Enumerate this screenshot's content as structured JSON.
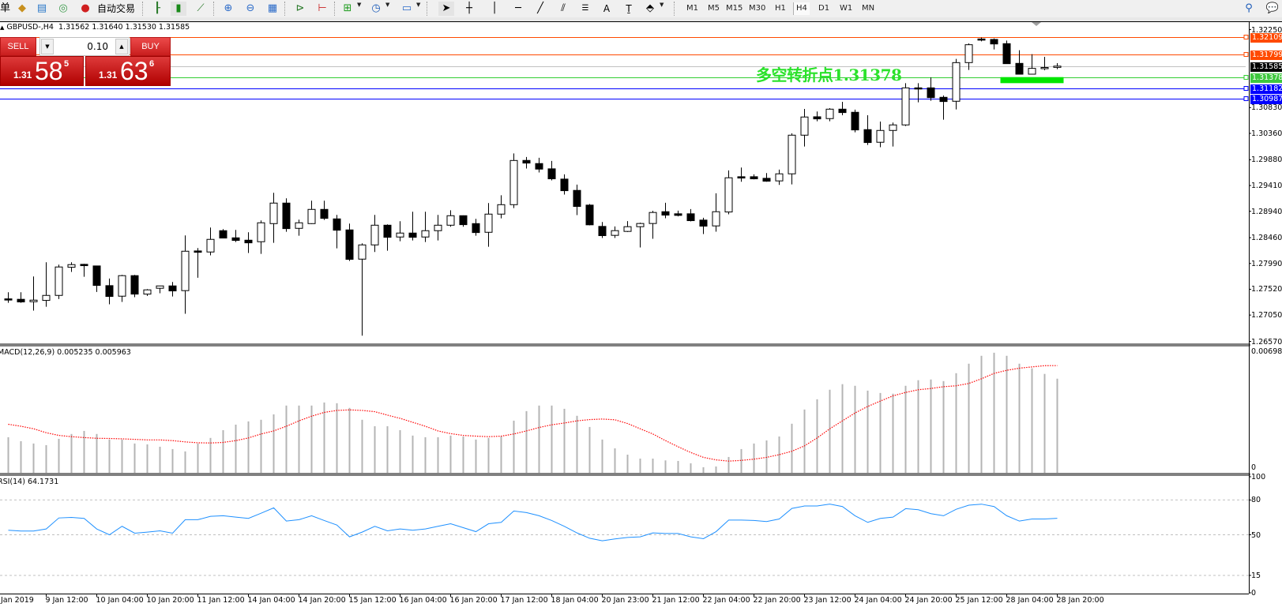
{
  "toolbar": {
    "truncated_label": "单",
    "auto_trade_label": "自动交易",
    "timeframes": [
      "M1",
      "M5",
      "M15",
      "M30",
      "H1",
      "H4",
      "D1",
      "W1",
      "MN"
    ],
    "active_timeframe": "H4",
    "icons": [
      "new-order-icon",
      "gold-icon",
      "history-center-icon",
      "signal-icon",
      "autotrade-icon",
      "bar-chart-icon",
      "candlestick-icon",
      "line-chart-icon",
      "zoom-in-icon",
      "zoom-out-icon",
      "tile-windows-icon",
      "auto-scroll-icon",
      "chart-shift-icon",
      "indicators-icon",
      "periods-clock-icon",
      "templates-icon",
      "cursor-icon",
      "crosshair-icon",
      "vertical-line-icon",
      "horizontal-line-icon",
      "trendline-icon",
      "equidistant-channel-icon",
      "fibonacci-icon",
      "text-icon",
      "text-label-icon",
      "shapes-icon",
      "search-icon",
      "chat-icon"
    ]
  },
  "chart": {
    "symbol": "GBPUSD-,H4",
    "ohlc_text": "1.31562 1.31640 1.31530 1.31585",
    "annotation": {
      "text": "多空转折点1.31378",
      "color": "#2be22b"
    },
    "levels": [
      {
        "price": "1.32109",
        "color": "#ff4a00",
        "label_bg": "#ff4a00",
        "marker": true
      },
      {
        "price": "1.31799",
        "color": "#ff4a00",
        "label_bg": "#ff4a00",
        "marker": true
      },
      {
        "price": "1.31585",
        "color": "#c0c0c0",
        "label_bg": "#000000",
        "marker": false
      },
      {
        "price": "1.31378",
        "color": "#32cd32",
        "label_bg": "#3ec83e",
        "marker": true
      },
      {
        "price": "1.31182",
        "color": "#0000ff",
        "label_bg": "#0000ff",
        "marker": true
      },
      {
        "price": "1.30987",
        "color": "#0000ff",
        "label_bg": "#0000ff",
        "marker": true
      }
    ],
    "zone": {
      "from_candle": 78.5,
      "to_candle": 83.5,
      "price_top": 1.31385,
      "price_bottom": 1.31275,
      "color": "#00e600"
    }
  },
  "trade_panel": {
    "sell_label": "SELL",
    "buy_label": "BUY",
    "lot": "0.10",
    "sell_price": {
      "prefix": "1.31",
      "big": "58",
      "sup": "5"
    },
    "buy_price": {
      "prefix": "1.31",
      "big": "63",
      "sup": "6"
    }
  },
  "chart_data": [
    {
      "type": "candlestick",
      "ylim": [
        1.2652,
        1.32387
      ],
      "price_ticks": [
        "1.32250",
        "1.30830",
        "1.30360",
        "1.29880",
        "1.29410",
        "1.28940",
        "1.28460",
        "1.27990",
        "1.27520",
        "1.27050",
        "1.26570"
      ],
      "time_labels": [
        "Jan 2019",
        "9 Jan 12:00",
        "10 Jan 04:00",
        "10 Jan 20:00",
        "11 Jan 12:00",
        "14 Jan 04:00",
        "14 Jan 20:00",
        "15 Jan 12:00",
        "16 Jan 04:00",
        "16 Jan 20:00",
        "17 Jan 12:00",
        "18 Jan 04:00",
        "20 Jan 23:00",
        "21 Jan 12:00",
        "22 Jan 04:00",
        "22 Jan 20:00",
        "23 Jan 12:00",
        "24 Jan 04:00",
        "24 Jan 20:00",
        "25 Jan 12:00",
        "28 Jan 04:00",
        "28 Jan 20:00"
      ],
      "ohlc_order": [
        "open",
        "high",
        "low",
        "close"
      ],
      "ohlc": [
        [
          1.27345,
          1.27466,
          1.27274,
          1.27338
        ],
        [
          1.27337,
          1.27466,
          1.27274,
          1.27289
        ],
        [
          1.27293,
          1.27753,
          1.27131,
          1.27322
        ],
        [
          1.27317,
          1.28012,
          1.27202,
          1.27408
        ],
        [
          1.27408,
          1.27969,
          1.27341,
          1.27926
        ],
        [
          1.27921,
          1.28012,
          1.27835,
          1.27969
        ],
        [
          1.27974,
          1.27983,
          1.27748,
          1.2795
        ],
        [
          1.27945,
          1.2795,
          1.27471,
          1.2759
        ],
        [
          1.27586,
          1.27715,
          1.27246,
          1.27389
        ],
        [
          1.27394,
          1.27782,
          1.27289,
          1.27768
        ],
        [
          1.27768,
          1.27782,
          1.27375,
          1.27432
        ],
        [
          1.27432,
          1.27523,
          1.27399,
          1.27509
        ],
        [
          1.27538,
          1.27585,
          1.27447,
          1.27581
        ],
        [
          1.27581,
          1.27653,
          1.27389,
          1.2749
        ],
        [
          1.27495,
          1.28501,
          1.27073,
          1.28213
        ],
        [
          1.28218,
          1.28271,
          1.27729,
          1.28194
        ],
        [
          1.28199,
          1.28644,
          1.28137,
          1.28429
        ],
        [
          1.28587,
          1.28616,
          1.28448,
          1.28453
        ],
        [
          1.28457,
          1.28601,
          1.28381,
          1.2841
        ],
        [
          1.28414,
          1.28558,
          1.2818,
          1.28366
        ],
        [
          1.28386,
          1.28774,
          1.28165,
          1.28731
        ],
        [
          1.28716,
          1.29277,
          1.28366,
          1.2909
        ],
        [
          1.2909,
          1.29176,
          1.28568,
          1.28625
        ],
        [
          1.2863,
          1.28788,
          1.28496,
          1.28731
        ],
        [
          1.28716,
          1.29133,
          1.2871,
          1.28975
        ],
        [
          1.28975,
          1.29133,
          1.28783,
          1.28812
        ],
        [
          1.28802,
          1.28874,
          1.28266,
          1.28596
        ],
        [
          1.28601,
          1.28716,
          1.28036,
          1.28065
        ],
        [
          1.28069,
          1.28357,
          1.26675,
          1.28328
        ],
        [
          1.28328,
          1.28874,
          1.28199,
          1.28687
        ],
        [
          1.28687,
          1.28702,
          1.28223,
          1.28467
        ],
        [
          1.28472,
          1.28759,
          1.28395,
          1.28544
        ],
        [
          1.28544,
          1.28932,
          1.2841,
          1.28467
        ],
        [
          1.28472,
          1.28932,
          1.28381,
          1.28587
        ],
        [
          1.28587,
          1.28874,
          1.2841,
          1.28687
        ],
        [
          1.28687,
          1.2896,
          1.28659,
          1.2886
        ],
        [
          1.2886,
          1.28865,
          1.28659,
          1.28697
        ],
        [
          1.28716,
          1.28802,
          1.28496,
          1.28553
        ],
        [
          1.28558,
          1.2909,
          1.28295,
          1.28889
        ],
        [
          1.28889,
          1.29233,
          1.28812,
          1.29061
        ],
        [
          1.29061,
          1.29995,
          1.28999,
          1.29866
        ],
        [
          1.29867,
          1.29929,
          1.29719,
          1.29819
        ],
        [
          1.2981,
          1.29915,
          1.29647,
          1.29709
        ],
        [
          1.29714,
          1.29858,
          1.29503,
          1.29532
        ],
        [
          1.29527,
          1.29613,
          1.29245,
          1.29316
        ],
        [
          1.29321,
          1.29427,
          1.28871,
          1.29029
        ],
        [
          1.29053,
          1.29072,
          1.28684,
          1.28694
        ],
        [
          1.28665,
          1.28746,
          1.28454,
          1.28497
        ],
        [
          1.28502,
          1.28665,
          1.28454,
          1.28588
        ],
        [
          1.28574,
          1.28761,
          1.28564,
          1.2866
        ],
        [
          1.2866,
          1.28732,
          1.28282,
          1.28718
        ],
        [
          1.28718,
          1.28948,
          1.2844,
          1.28919
        ],
        [
          1.28933,
          1.29096,
          1.28813,
          1.28871
        ],
        [
          1.28895,
          1.28952,
          1.28847,
          1.28866
        ],
        [
          1.28895,
          1.28981,
          1.28756,
          1.2877
        ],
        [
          1.2878,
          1.28823,
          1.28526,
          1.2867
        ],
        [
          1.28674,
          1.29268,
          1.28569,
          1.28933
        ],
        [
          1.28928,
          1.29685,
          1.28885,
          1.29551
        ],
        [
          1.2957,
          1.29738,
          1.29479,
          1.29546
        ],
        [
          1.2957,
          1.29613,
          1.29522,
          1.29532
        ],
        [
          1.29541,
          1.29637,
          1.29479,
          1.29489
        ],
        [
          1.29494,
          1.297,
          1.29422,
          1.29623
        ],
        [
          1.29623,
          1.30361,
          1.29431,
          1.30327
        ],
        [
          1.30327,
          1.30806,
          1.30121,
          1.30658
        ],
        [
          1.30662,
          1.30758,
          1.30581,
          1.30624
        ],
        [
          1.30629,
          1.3082,
          1.30581,
          1.30801
        ],
        [
          1.30801,
          1.30935,
          1.30691,
          1.30739
        ],
        [
          1.30744,
          1.30792,
          1.3038,
          1.30423
        ],
        [
          1.30428,
          1.30691,
          1.3015,
          1.30193
        ],
        [
          1.30198,
          1.30576,
          1.30107,
          1.30413
        ],
        [
          1.30413,
          1.30557,
          1.30121,
          1.30514
        ],
        [
          1.30514,
          1.31275,
          1.30495,
          1.31189
        ],
        [
          1.31189,
          1.31275,
          1.30926,
          1.3117
        ],
        [
          1.31189,
          1.31381,
          1.30955,
          1.31012
        ],
        [
          1.31017,
          1.3105,
          1.3061,
          1.3094
        ],
        [
          1.30945,
          1.31716,
          1.30796,
          1.31649
        ],
        [
          1.31649,
          1.31999,
          1.31515,
          1.31975
        ],
        [
          1.3208,
          1.32104,
          1.32037,
          1.32061
        ],
        [
          1.32071,
          1.3209,
          1.31889,
          1.31989
        ],
        [
          1.31994,
          1.32051,
          1.31625,
          1.3163
        ],
        [
          1.31635,
          1.31874,
          1.3143,
          1.31438
        ],
        [
          1.31438,
          1.31802,
          1.3143,
          1.31544
        ],
        [
          1.31545,
          1.31754,
          1.3151,
          1.3156
        ],
        [
          1.31562,
          1.3164,
          1.3153,
          1.31585
        ]
      ]
    },
    {
      "type": "bar",
      "title": "MACD(12,26,9) 0.005235 0.005963",
      "ylim": [
        0,
        0.00698
      ],
      "tick_labels": [
        "0.00698",
        "0"
      ],
      "series": [
        {
          "kind": "histogram",
          "color": "#b4b4b4",
          "values": [
            0.00198,
            0.00176,
            0.00163,
            0.00154,
            0.00189,
            0.00216,
            0.00233,
            0.00216,
            0.00185,
            0.00185,
            0.00163,
            0.00158,
            0.00145,
            0.00132,
            0.00119,
            0.00163,
            0.00194,
            0.00237,
            0.00268,
            0.00286,
            0.00295,
            0.00325,
            0.00374,
            0.00374,
            0.00374,
            0.00391,
            0.00387,
            0.00361,
            0.00295,
            0.00259,
            0.00259,
            0.00237,
            0.00207,
            0.00198,
            0.00198,
            0.00207,
            0.00202,
            0.00185,
            0.00194,
            0.00202,
            0.0029,
            0.00343,
            0.00374,
            0.00374,
            0.00356,
            0.00317,
            0.00255,
            0.00185,
            0.00136,
            0.00101,
            0.00079,
            0.00079,
            0.00069,
            0.00066,
            0.00053,
            0.00031,
            0.00035,
            0.00088,
            0.00132,
            0.00163,
            0.0018,
            0.00202,
            0.00273,
            0.00352,
            0.00409,
            0.00462,
            0.00493,
            0.00484,
            0.00457,
            0.00444,
            0.0044,
            0.00484,
            0.00515,
            0.00519,
            0.0051,
            0.00554,
            0.00607,
            0.00651,
            0.00668,
            0.00651,
            0.00607,
            0.00581,
            0.0055,
            0.005235
          ]
        },
        {
          "kind": "signal",
          "color": "#ff0000",
          "values": [
            0.0027,
            0.00259,
            0.00245,
            0.00223,
            0.00208,
            0.00201,
            0.00196,
            0.00192,
            0.00191,
            0.00189,
            0.00186,
            0.00183,
            0.00183,
            0.00179,
            0.00172,
            0.00167,
            0.00166,
            0.00169,
            0.00179,
            0.00194,
            0.00216,
            0.00233,
            0.00259,
            0.00289,
            0.00315,
            0.00336,
            0.00347,
            0.0035,
            0.00347,
            0.0034,
            0.00321,
            0.00303,
            0.00281,
            0.00259,
            0.00233,
            0.00218,
            0.00208,
            0.00204,
            0.00201,
            0.00204,
            0.00216,
            0.00233,
            0.00252,
            0.00267,
            0.00277,
            0.00289,
            0.00296,
            0.00299,
            0.00295,
            0.00274,
            0.00245,
            0.00216,
            0.00179,
            0.00145,
            0.00113,
            0.00086,
            0.00072,
            0.00065,
            0.00069,
            0.00076,
            0.00086,
            0.00101,
            0.0012,
            0.0015,
            0.00194,
            0.00245,
            0.00289,
            0.00333,
            0.00369,
            0.00399,
            0.00428,
            0.00447,
            0.00462,
            0.00469,
            0.00479,
            0.00484,
            0.00497,
            0.00523,
            0.00553,
            0.0057,
            0.00582,
            0.00589,
            0.00596,
            0.005963
          ]
        }
      ]
    },
    {
      "type": "line",
      "title": "RSI(14) 64.1731",
      "ylim": [
        0,
        100
      ],
      "tick_labels": [
        "100",
        "80",
        "50",
        "15",
        "0"
      ],
      "levels": [
        80,
        50,
        15
      ],
      "series": [
        {
          "color": "#1e90ff",
          "values": [
            53.9,
            53.2,
            53.2,
            55.0,
            64.5,
            65.0,
            64.1,
            55.0,
            50.0,
            57.3,
            51.4,
            52.3,
            53.4,
            51.4,
            63.0,
            63.0,
            65.9,
            66.4,
            65.2,
            64.1,
            68.6,
            73.2,
            61.8,
            63.0,
            66.4,
            62.3,
            58.4,
            48.2,
            52.3,
            57.3,
            53.4,
            55.0,
            53.9,
            55.0,
            57.3,
            59.5,
            56.1,
            52.7,
            59.5,
            60.7,
            70.5,
            69.1,
            66.4,
            62.3,
            57.3,
            51.6,
            47.0,
            44.8,
            46.4,
            47.7,
            48.2,
            51.6,
            51.1,
            51.1,
            48.2,
            46.6,
            52.7,
            62.7,
            62.7,
            62.3,
            61.4,
            63.6,
            72.7,
            74.8,
            74.8,
            76.4,
            74.3,
            66.4,
            60.7,
            64.1,
            65.2,
            72.5,
            71.6,
            68.2,
            66.4,
            72.0,
            75.5,
            76.4,
            74.3,
            66.4,
            61.8,
            63.6,
            63.6,
            64.17
          ]
        }
      ]
    }
  ]
}
